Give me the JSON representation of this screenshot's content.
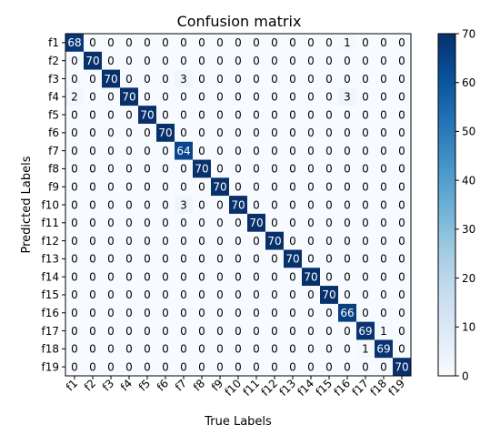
{
  "chart_data": {
    "type": "heatmap",
    "title": "Confusion matrix",
    "xlabel": "True Labels",
    "ylabel": "Predicted Labels",
    "x_categories": [
      "f1",
      "f2",
      "f3",
      "f4",
      "f5",
      "f6",
      "f7",
      "f8",
      "f9",
      "f10",
      "f11",
      "f12",
      "f13",
      "f14",
      "f15",
      "f16",
      "f17",
      "f18",
      "f19"
    ],
    "y_categories": [
      "f1",
      "f2",
      "f3",
      "f4",
      "f5",
      "f6",
      "f7",
      "f8",
      "f9",
      "f10",
      "f11",
      "f12",
      "f13",
      "f14",
      "f15",
      "f16",
      "f17",
      "f18",
      "f19"
    ],
    "values": [
      [
        68,
        0,
        0,
        0,
        0,
        0,
        0,
        0,
        0,
        0,
        0,
        0,
        0,
        0,
        0,
        1,
        0,
        0,
        0
      ],
      [
        0,
        70,
        0,
        0,
        0,
        0,
        0,
        0,
        0,
        0,
        0,
        0,
        0,
        0,
        0,
        0,
        0,
        0,
        0
      ],
      [
        0,
        0,
        70,
        0,
        0,
        0,
        3,
        0,
        0,
        0,
        0,
        0,
        0,
        0,
        0,
        0,
        0,
        0,
        0
      ],
      [
        2,
        0,
        0,
        70,
        0,
        0,
        0,
        0,
        0,
        0,
        0,
        0,
        0,
        0,
        0,
        3,
        0,
        0,
        0
      ],
      [
        0,
        0,
        0,
        0,
        70,
        0,
        0,
        0,
        0,
        0,
        0,
        0,
        0,
        0,
        0,
        0,
        0,
        0,
        0
      ],
      [
        0,
        0,
        0,
        0,
        0,
        70,
        0,
        0,
        0,
        0,
        0,
        0,
        0,
        0,
        0,
        0,
        0,
        0,
        0
      ],
      [
        0,
        0,
        0,
        0,
        0,
        0,
        64,
        0,
        0,
        0,
        0,
        0,
        0,
        0,
        0,
        0,
        0,
        0,
        0
      ],
      [
        0,
        0,
        0,
        0,
        0,
        0,
        0,
        70,
        0,
        0,
        0,
        0,
        0,
        0,
        0,
        0,
        0,
        0,
        0
      ],
      [
        0,
        0,
        0,
        0,
        0,
        0,
        0,
        0,
        70,
        0,
        0,
        0,
        0,
        0,
        0,
        0,
        0,
        0,
        0
      ],
      [
        0,
        0,
        0,
        0,
        0,
        0,
        3,
        0,
        0,
        70,
        0,
        0,
        0,
        0,
        0,
        0,
        0,
        0,
        0
      ],
      [
        0,
        0,
        0,
        0,
        0,
        0,
        0,
        0,
        0,
        0,
        70,
        0,
        0,
        0,
        0,
        0,
        0,
        0,
        0
      ],
      [
        0,
        0,
        0,
        0,
        0,
        0,
        0,
        0,
        0,
        0,
        0,
        70,
        0,
        0,
        0,
        0,
        0,
        0,
        0
      ],
      [
        0,
        0,
        0,
        0,
        0,
        0,
        0,
        0,
        0,
        0,
        0,
        0,
        70,
        0,
        0,
        0,
        0,
        0,
        0
      ],
      [
        0,
        0,
        0,
        0,
        0,
        0,
        0,
        0,
        0,
        0,
        0,
        0,
        0,
        70,
        0,
        0,
        0,
        0,
        0
      ],
      [
        0,
        0,
        0,
        0,
        0,
        0,
        0,
        0,
        0,
        0,
        0,
        0,
        0,
        0,
        70,
        0,
        0,
        0,
        0
      ],
      [
        0,
        0,
        0,
        0,
        0,
        0,
        0,
        0,
        0,
        0,
        0,
        0,
        0,
        0,
        0,
        66,
        0,
        0,
        0
      ],
      [
        0,
        0,
        0,
        0,
        0,
        0,
        0,
        0,
        0,
        0,
        0,
        0,
        0,
        0,
        0,
        0,
        69,
        1,
        0
      ],
      [
        0,
        0,
        0,
        0,
        0,
        0,
        0,
        0,
        0,
        0,
        0,
        0,
        0,
        0,
        0,
        0,
        1,
        69,
        0
      ],
      [
        0,
        0,
        0,
        0,
        0,
        0,
        0,
        0,
        0,
        0,
        0,
        0,
        0,
        0,
        0,
        0,
        0,
        0,
        70
      ]
    ],
    "colormap": "Blues",
    "colormap_stops": [
      "#f7fbff",
      "#deebf7",
      "#c6dbef",
      "#9ecae1",
      "#6baed6",
      "#4292c6",
      "#2171b5",
      "#08519c",
      "#08306b"
    ],
    "vmin": 0,
    "vmax": 70,
    "colorbar_ticks": [
      0,
      10,
      20,
      30,
      40,
      50,
      60,
      70
    ],
    "grid": false,
    "legend": "colorbar-right",
    "x_tick_rotation": "45deg"
  }
}
